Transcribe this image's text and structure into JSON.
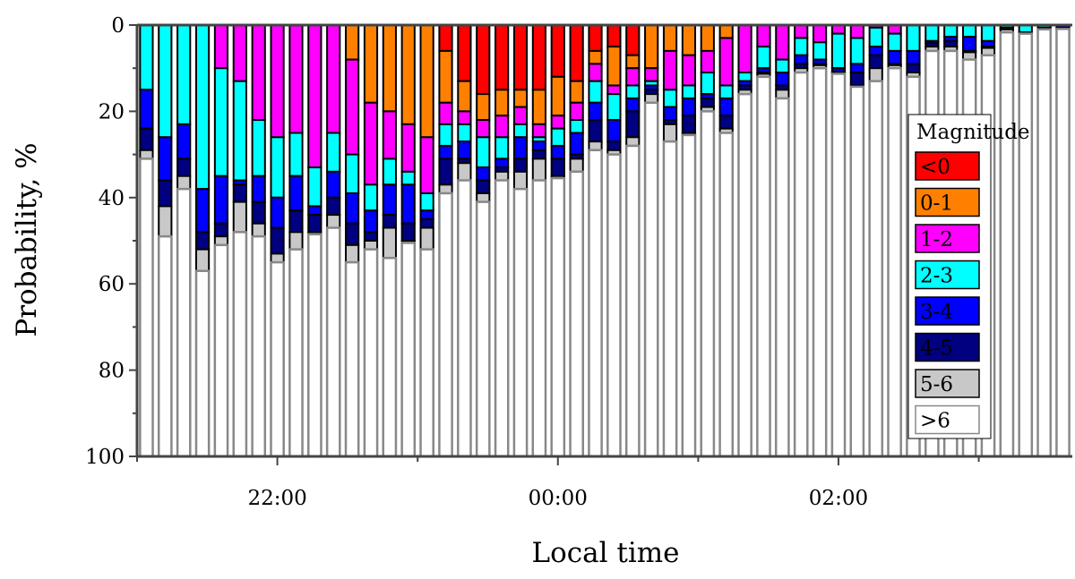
{
  "chart_data": {
    "type": "bar",
    "stacked": true,
    "y_inverted": true,
    "xlabel": "Local time",
    "ylabel": "Probability, %",
    "ylim": [
      0,
      100
    ],
    "yticks": [
      "0",
      "20",
      "40",
      "60",
      "80",
      "100"
    ],
    "xticks": [
      {
        "label": "22:00",
        "hour": 22
      },
      {
        "label": "00:00",
        "hour": 24
      },
      {
        "label": "02:00",
        "hour": 26
      }
    ],
    "xlim_hours": [
      21,
      27.667
    ],
    "bar_interval_minutes": 8,
    "legend": {
      "title": "Magnitude",
      "placement": "right"
    },
    "series": [
      {
        "name": "<0",
        "color": "#ff0000"
      },
      {
        "name": "0-1",
        "color": "#ff8000"
      },
      {
        "name": "1-2",
        "color": "#ff00ff"
      },
      {
        "name": "2-3",
        "color": "#00ffff"
      },
      {
        "name": "3-4",
        "color": "#0000ff"
      },
      {
        "name": "4-5",
        "color": "#000080"
      },
      {
        "name": "5-6",
        "color": "#c8c8c8"
      },
      {
        "name": ">6",
        "color": "#ffffff"
      }
    ],
    "categories": [
      "21:04",
      "21:12",
      "21:20",
      "21:28",
      "21:36",
      "21:44",
      "21:52",
      "22:00",
      "22:08",
      "22:16",
      "22:24",
      "22:32",
      "22:40",
      "22:48",
      "22:56",
      "23:04",
      "23:12",
      "23:20",
      "23:28",
      "23:36",
      "23:44",
      "23:52",
      "00:00",
      "00:08",
      "00:16",
      "00:24",
      "00:32",
      "00:40",
      "00:48",
      "00:56",
      "01:04",
      "01:12",
      "01:20",
      "01:28",
      "01:36",
      "01:44",
      "01:52",
      "02:00",
      "02:08",
      "02:16",
      "02:24",
      "02:32",
      "02:40",
      "02:48",
      "02:56",
      "03:04",
      "03:12",
      "03:20",
      "03:28",
      "03:36"
    ],
    "cumulative_percent_note": "per bar: cumulative upper bound (%) of classes <0,0-1,1-2,2-3,3-4,4-5,5-6; remainder to 100 is >6",
    "cumulative_percent": [
      [
        0,
        0,
        0,
        15,
        24,
        29,
        31
      ],
      [
        0,
        0,
        0,
        26,
        36,
        42,
        49
      ],
      [
        0,
        0,
        0,
        23,
        31,
        35,
        38
      ],
      [
        0,
        0,
        0,
        38,
        48,
        52,
        57
      ],
      [
        0,
        0,
        10,
        35,
        46,
        49,
        51
      ],
      [
        0,
        0,
        13,
        36,
        37,
        41,
        48
      ],
      [
        0,
        0,
        22,
        35,
        41,
        46,
        49
      ],
      [
        0,
        0,
        26,
        40,
        47,
        53,
        55
      ],
      [
        0,
        0,
        25,
        35,
        43,
        48,
        52
      ],
      [
        0,
        0,
        33,
        42,
        44,
        48,
        48.5
      ],
      [
        0,
        0,
        25,
        34,
        40,
        44,
        47
      ],
      [
        0,
        8,
        30,
        39,
        46,
        51,
        55
      ],
      [
        0,
        18,
        37,
        43,
        48,
        50,
        52
      ],
      [
        0,
        20,
        31,
        37,
        44,
        47,
        54
      ],
      [
        0,
        23,
        34,
        37,
        46,
        50,
        50.5
      ],
      [
        0,
        26,
        39,
        43,
        45,
        47,
        52
      ],
      [
        6,
        18,
        23,
        28,
        31,
        37,
        39
      ],
      [
        13,
        20,
        23,
        27,
        31,
        32,
        36
      ],
      [
        16,
        22,
        26,
        33,
        36,
        39,
        41
      ],
      [
        15,
        21,
        26,
        31,
        33,
        34,
        36
      ],
      [
        15,
        19,
        23,
        26,
        31,
        34,
        38
      ],
      [
        15,
        23,
        26,
        27,
        29,
        31,
        36
      ],
      [
        12,
        21,
        24,
        28,
        31,
        35,
        35.5
      ],
      [
        13,
        18,
        22,
        25,
        30,
        31,
        34
      ],
      [
        6,
        9,
        13,
        18,
        22,
        27,
        29
      ],
      [
        5,
        14,
        16,
        22,
        27,
        29,
        30
      ],
      [
        7,
        10,
        14,
        17,
        20,
        26,
        28
      ],
      [
        0,
        10,
        13,
        14,
        15,
        16,
        18
      ],
      [
        0,
        6,
        15,
        19,
        22,
        23,
        27
      ],
      [
        0,
        7,
        14,
        17,
        21,
        25,
        25.5
      ],
      [
        0,
        6,
        11,
        16,
        17,
        19,
        20
      ],
      [
        0,
        3,
        14,
        17,
        21,
        24,
        25
      ],
      [
        0,
        0,
        11,
        13,
        14,
        15,
        16
      ],
      [
        0,
        0,
        5,
        10,
        11,
        11.3,
        12
      ],
      [
        0,
        0,
        8,
        11,
        14,
        15,
        17
      ],
      [
        0,
        0,
        3,
        7,
        9,
        10,
        11
      ],
      [
        0,
        0,
        4,
        8,
        9,
        9.3,
        10
      ],
      [
        0,
        0,
        2,
        10,
        10.8,
        11,
        11.3
      ],
      [
        0,
        0,
        3,
        9,
        11,
        14,
        14.3
      ],
      [
        0,
        0,
        0.6,
        5,
        7,
        10,
        13
      ],
      [
        0,
        0,
        2,
        6,
        9,
        9.3,
        10
      ],
      [
        0,
        0,
        0,
        6,
        9,
        11,
        12
      ],
      [
        0,
        0,
        0,
        3.7,
        4.2,
        5,
        6
      ],
      [
        0,
        0,
        0,
        2.7,
        3.7,
        5,
        6
      ],
      [
        0,
        0,
        0,
        2.7,
        6,
        6.3,
        8
      ],
      [
        0,
        0,
        0,
        3.7,
        5,
        5.3,
        7
      ],
      [
        0,
        0,
        0,
        0.6,
        0.8,
        1,
        1.7
      ],
      [
        0,
        0,
        0,
        1.7,
        1.8,
        1.9,
        2
      ],
      [
        0,
        0,
        0,
        0.6,
        0.7,
        0.8,
        1
      ],
      [
        0,
        0,
        0,
        0,
        0.6,
        0.7,
        0.9
      ]
    ]
  }
}
